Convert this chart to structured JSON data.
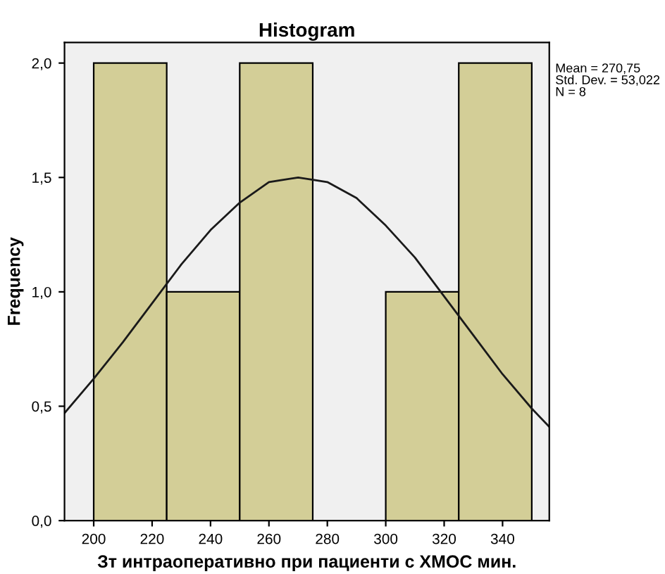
{
  "chart_data": {
    "type": "histogram",
    "title": "Histogram",
    "xlabel": "Зт интраоперативно при пациенти с ХМОС мин.",
    "ylabel": "Frequency",
    "bins": [
      200,
      225,
      250,
      275,
      300,
      325,
      350
    ],
    "values": [
      2,
      1,
      2,
      0,
      1,
      2
    ],
    "color": "#d3ce97",
    "series": [
      {
        "type": "line",
        "color": "#1a1a1a",
        "x": [
          190,
          200,
          210,
          220,
          230,
          240,
          250,
          260,
          270,
          280,
          290,
          300,
          310,
          320,
          330,
          340,
          350,
          356
        ],
        "values": [
          0.47,
          0.62,
          0.78,
          0.95,
          1.12,
          1.27,
          1.39,
          1.48,
          1.5,
          1.48,
          1.41,
          1.29,
          1.15,
          0.98,
          0.81,
          0.64,
          0.49,
          0.41
        ]
      }
    ],
    "xlim": [
      190,
      356
    ],
    "xticks": [
      200,
      220,
      240,
      260,
      280,
      300,
      320,
      340
    ],
    "ylim": [
      0,
      2.09
    ],
    "yticks": [
      {
        "value": 0,
        "label": "0,0"
      },
      {
        "value": 0.5,
        "label": "0,5"
      },
      {
        "value": 1,
        "label": "1,0"
      },
      {
        "value": 1.5,
        "label": "1,5"
      },
      {
        "value": 2,
        "label": "2,0"
      }
    ],
    "annotations": [
      "Mean = 270,75\nStd. Dev. = 53,022\nN = 8"
    ],
    "grid": false,
    "legend": false
  }
}
